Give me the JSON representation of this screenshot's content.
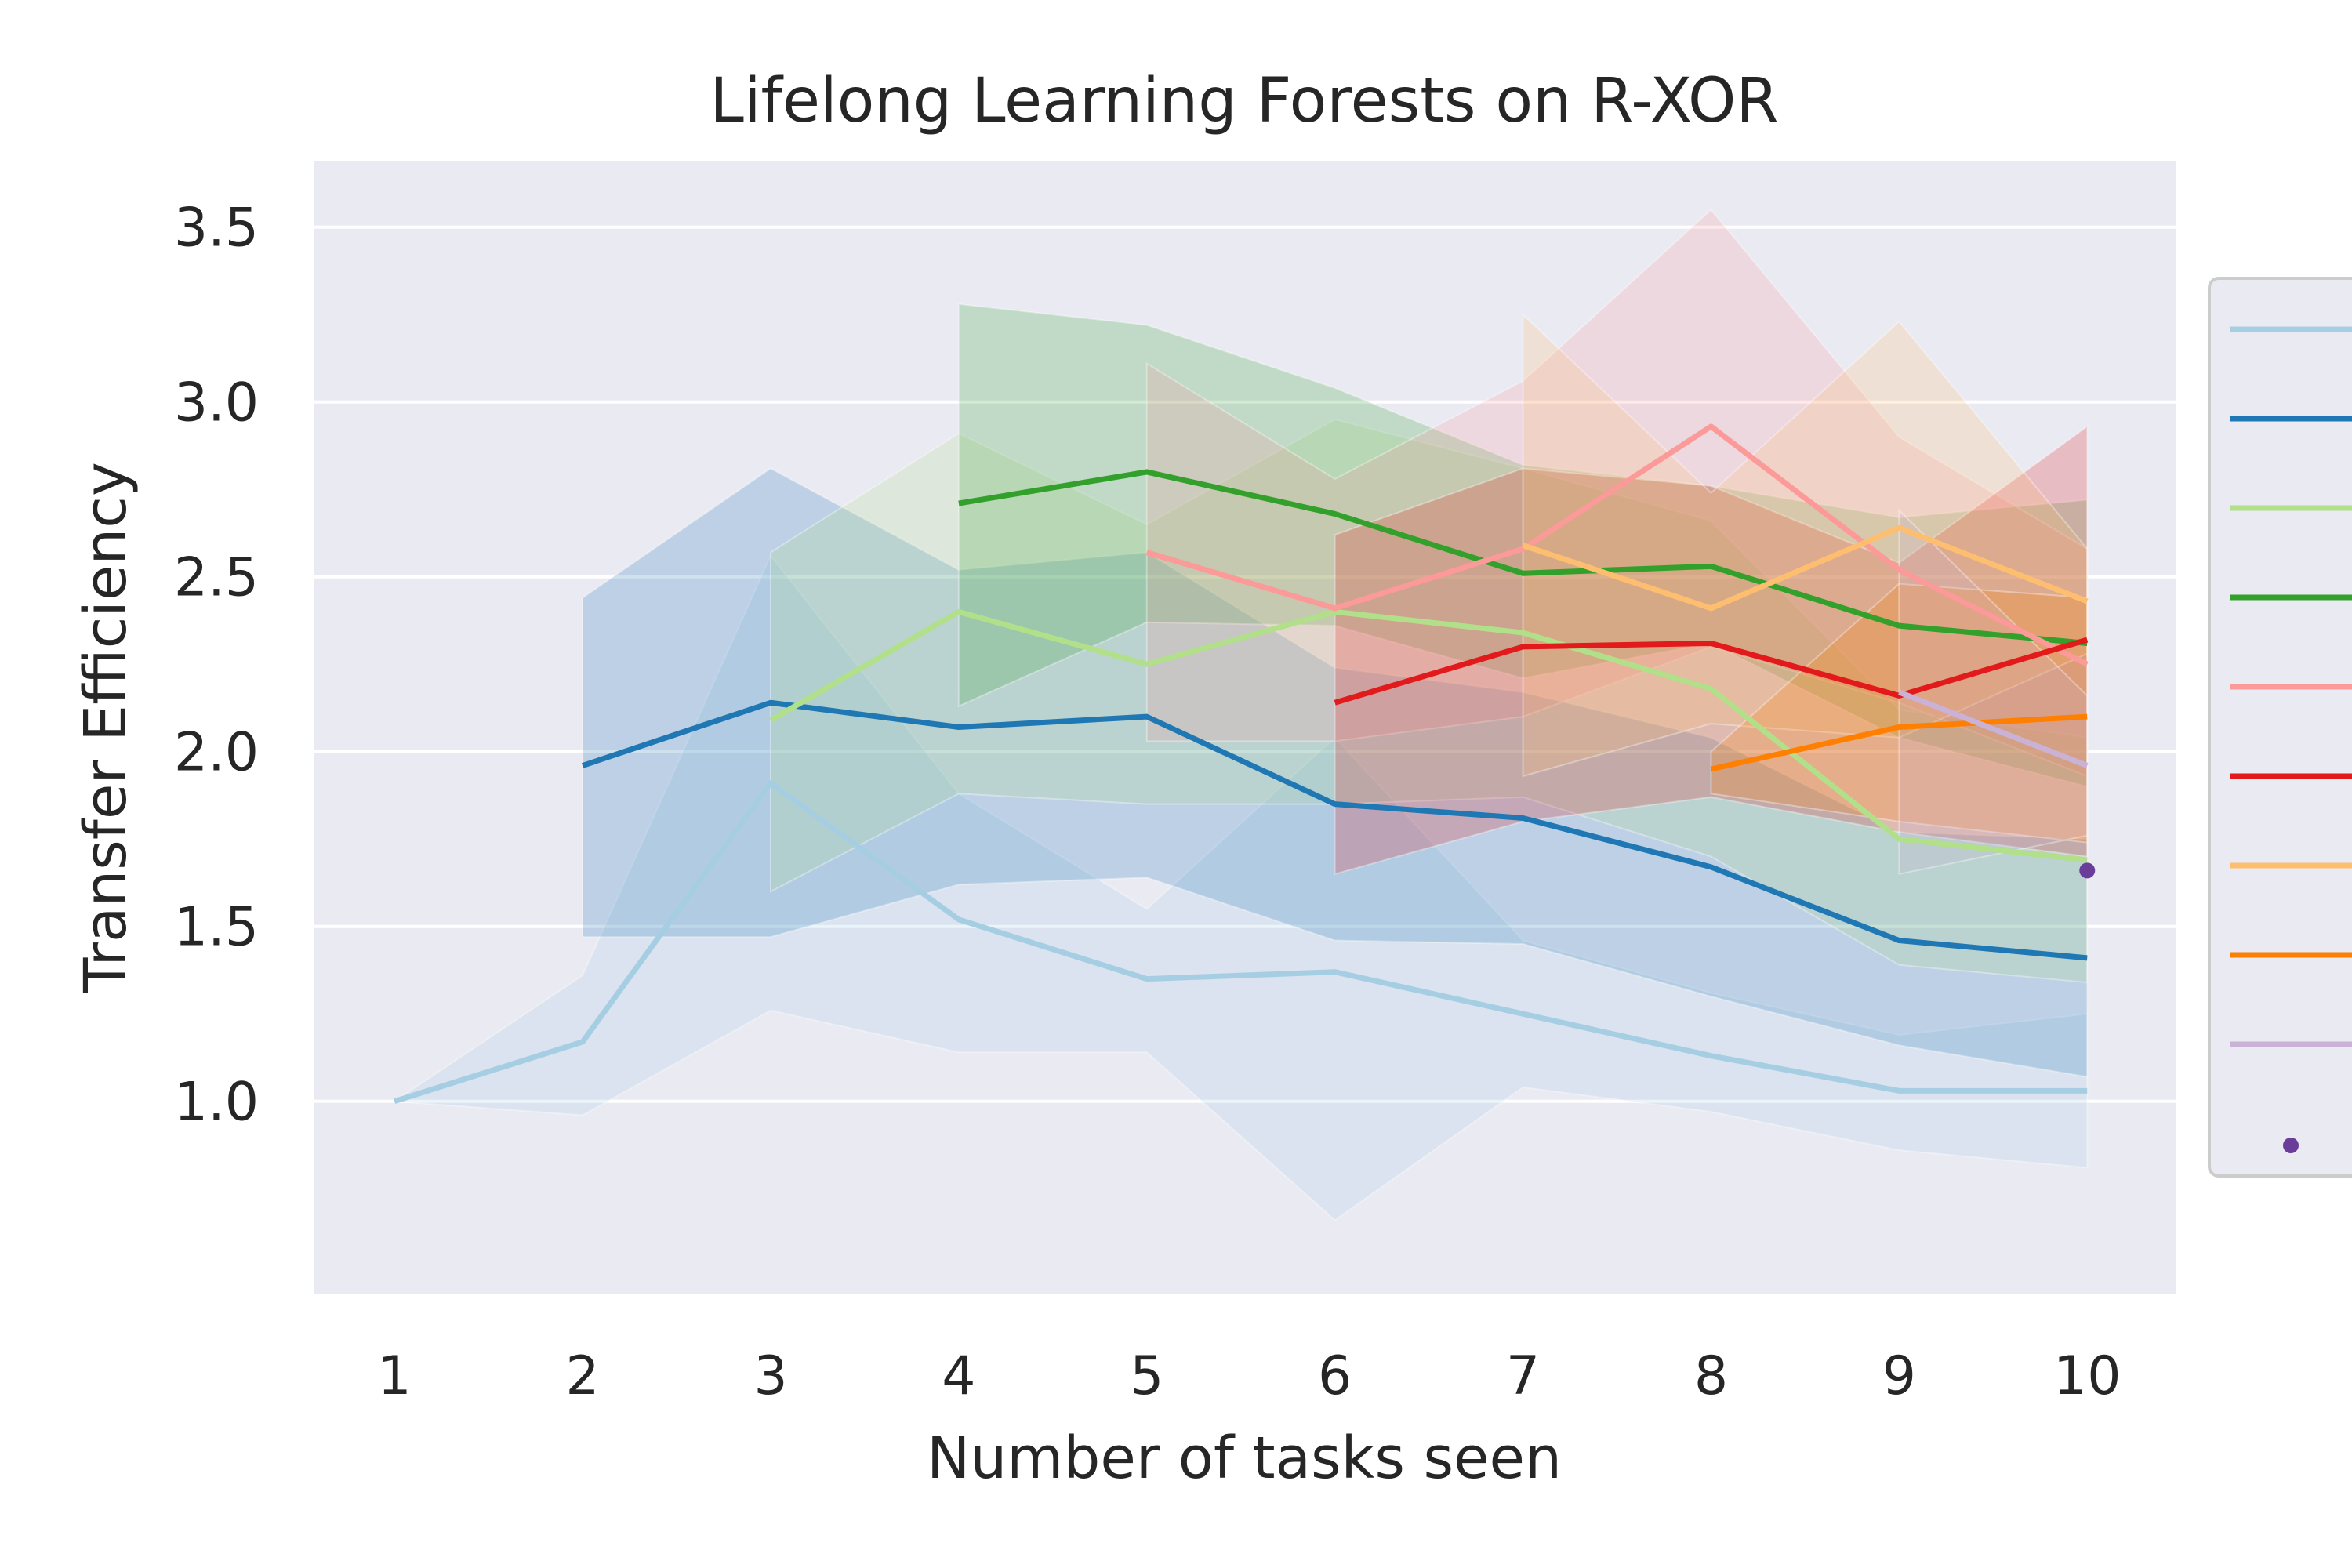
{
  "chart_data": {
    "type": "line",
    "title": "Lifelong Learning Forests on R-XOR",
    "xlabel": "Number of tasks seen",
    "ylabel": "Transfer Efficiency",
    "xlim": [
      0.57,
      10.47
    ],
    "ylim": [
      0.45,
      3.69
    ],
    "x_ticks": [
      1,
      2,
      3,
      4,
      5,
      6,
      7,
      8,
      9,
      10
    ],
    "y_ticks": [
      1.0,
      1.5,
      2.0,
      2.5,
      3.0,
      3.5
    ],
    "grid": true,
    "legend_position": "right (partially cropped)",
    "series": [
      {
        "color": "#a6cee3",
        "x": [
          1,
          2,
          3,
          4,
          5,
          6,
          7,
          8,
          9,
          10
        ],
        "values": [
          1.0,
          1.17,
          1.91,
          1.52,
          1.35,
          1.37,
          1.25,
          1.13,
          1.03,
          1.03
        ],
        "lower": [
          1.0,
          0.96,
          1.26,
          1.14,
          1.14,
          0.66,
          1.04,
          0.97,
          0.86,
          0.81
        ],
        "upper": [
          1.0,
          1.36,
          2.56,
          1.88,
          1.55,
          2.04,
          1.46,
          1.31,
          1.19,
          1.25
        ]
      },
      {
        "color": "#1f78b4",
        "x": [
          2,
          3,
          4,
          5,
          6,
          7,
          8,
          9,
          10
        ],
        "values": [
          1.96,
          2.14,
          2.07,
          2.1,
          1.85,
          1.81,
          1.67,
          1.46,
          1.41
        ],
        "lower": [
          1.47,
          1.47,
          1.62,
          1.64,
          1.46,
          1.45,
          1.3,
          1.16,
          1.07
        ],
        "upper": [
          2.44,
          2.81,
          2.52,
          2.57,
          2.24,
          2.17,
          2.04,
          1.77,
          1.75
        ]
      },
      {
        "color": "#b2df8a",
        "x": [
          3,
          4,
          5,
          6,
          7,
          8,
          9,
          10
        ],
        "values": [
          2.09,
          2.4,
          2.25,
          2.4,
          2.34,
          2.18,
          1.75,
          1.69
        ],
        "lower": [
          1.6,
          1.88,
          1.85,
          1.85,
          1.87,
          1.7,
          1.39,
          1.34
        ],
        "upper": [
          2.57,
          2.91,
          2.65,
          2.95,
          2.81,
          2.66,
          2.12,
          2.04
        ]
      },
      {
        "color": "#33a02c",
        "x": [
          4,
          5,
          6,
          7,
          8,
          9,
          10
        ],
        "values": [
          2.71,
          2.8,
          2.68,
          2.51,
          2.53,
          2.36,
          2.31
        ],
        "lower": [
          2.13,
          2.37,
          2.36,
          2.21,
          2.31,
          2.04,
          1.9
        ],
        "upper": [
          3.28,
          3.22,
          3.04,
          2.82,
          2.76,
          2.67,
          2.72
        ]
      },
      {
        "color": "#fb9a99",
        "x": [
          5,
          6,
          7,
          8,
          9,
          10
        ],
        "values": [
          2.57,
          2.41,
          2.58,
          2.93,
          2.52,
          2.25
        ],
        "lower": [
          2.03,
          2.03,
          2.1,
          2.3,
          2.14,
          1.93
        ],
        "upper": [
          3.11,
          2.78,
          3.06,
          3.55,
          2.9,
          2.58
        ]
      },
      {
        "color": "#e31a1c",
        "x": [
          6,
          7,
          8,
          9,
          10
        ],
        "values": [
          2.14,
          2.3,
          2.31,
          2.16,
          2.32
        ],
        "lower": [
          1.65,
          1.8,
          1.87,
          1.77,
          1.7
        ],
        "upper": [
          2.62,
          2.81,
          2.76,
          2.54,
          2.93
        ]
      },
      {
        "color": "#fdbf6f",
        "x": [
          7,
          8,
          9,
          10
        ],
        "values": [
          2.59,
          2.41,
          2.64,
          2.43
        ],
        "lower": [
          1.93,
          2.08,
          2.04,
          2.28
        ],
        "upper": [
          3.25,
          2.74,
          3.23,
          2.58
        ]
      },
      {
        "color": "#ff7f00",
        "x": [
          8,
          9,
          10
        ],
        "values": [
          1.95,
          2.07,
          2.1
        ],
        "lower": [
          1.88,
          1.8,
          1.74
        ],
        "upper": [
          2.0,
          2.48,
          2.44
        ]
      },
      {
        "color": "#cab2d6",
        "x": [
          9,
          10
        ],
        "values": [
          2.17,
          1.96
        ],
        "lower": [
          1.65,
          1.76
        ],
        "upper": [
          2.69,
          2.16
        ]
      },
      {
        "color": "#6a3d9a",
        "x": [
          10
        ],
        "values": [
          1.66
        ],
        "lower": [
          1.66
        ],
        "upper": [
          1.66
        ]
      }
    ]
  }
}
